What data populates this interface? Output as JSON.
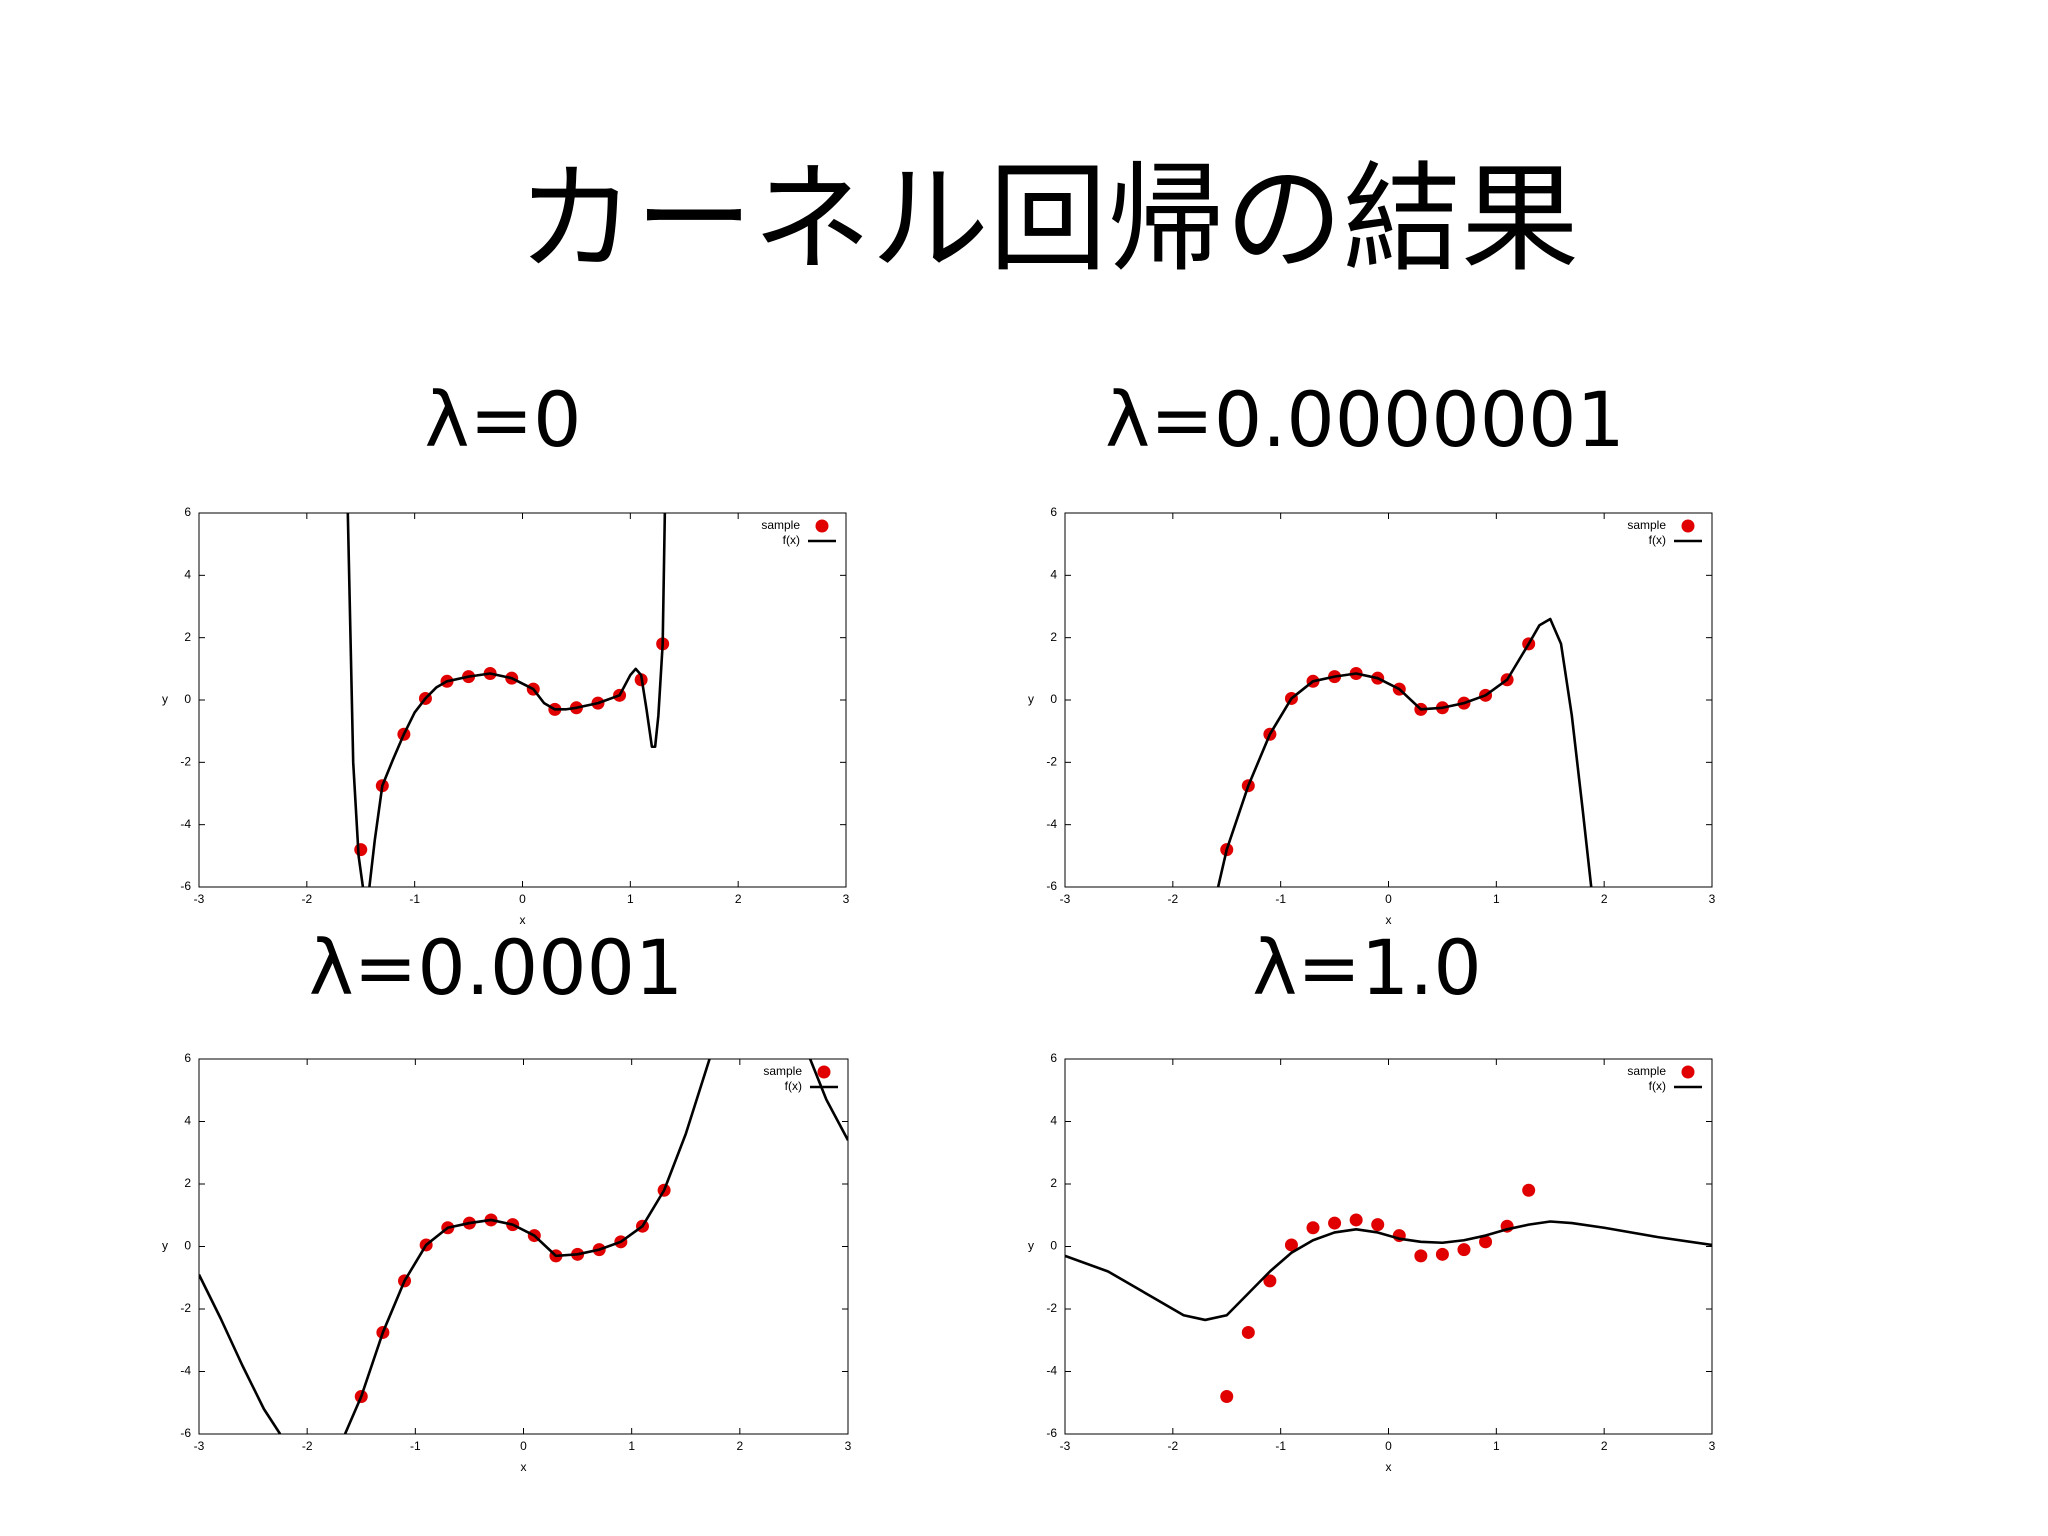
{
  "title": "カーネル回帰の結果",
  "chart_data": [
    {
      "type": "line",
      "title": "λ=0",
      "xlabel": "x",
      "ylabel": "y",
      "xlim": [
        -3,
        3
      ],
      "ylim": [
        -6,
        6
      ],
      "xticks": [
        -3,
        -2,
        -1,
        0,
        1,
        2,
        3
      ],
      "yticks": [
        -6,
        -4,
        -2,
        0,
        2,
        4,
        6
      ],
      "legend": "upper right",
      "series": [
        {
          "name": "sample",
          "mode": "markers",
          "color": "#e00000",
          "x": [
            -1.5,
            -1.3,
            -1.1,
            -0.9,
            -0.7,
            -0.5,
            -0.3,
            -0.1,
            0.1,
            0.3,
            0.5,
            0.7,
            0.9,
            1.1,
            1.3
          ],
          "y": [
            -4.8,
            -2.75,
            -1.1,
            0.05,
            0.6,
            0.75,
            0.85,
            0.7,
            0.35,
            -0.3,
            -0.25,
            -0.1,
            0.15,
            0.65,
            1.8
          ]
        },
        {
          "name": "f(x)",
          "mode": "line",
          "color": "#000000",
          "x": [
            -1.62,
            -1.57,
            -1.52,
            -1.48,
            null,
            -1.42,
            -1.37,
            -1.3,
            -1.2,
            -1.1,
            -1.0,
            -0.9,
            -0.8,
            -0.7,
            -0.5,
            -0.3,
            -0.1,
            0.1,
            0.2,
            0.3,
            0.4,
            0.5,
            0.7,
            0.9,
            1.0,
            1.05,
            1.1,
            1.15,
            1.2,
            1.23,
            1.26,
            1.3,
            1.32
          ],
          "y": [
            6,
            -2,
            -5,
            -6,
            null,
            -6,
            -4.5,
            -2.75,
            -1.9,
            -1.1,
            -0.4,
            0.05,
            0.4,
            0.6,
            0.75,
            0.85,
            0.7,
            0.35,
            -0.1,
            -0.3,
            -0.3,
            -0.25,
            -0.1,
            0.15,
            0.8,
            1.0,
            0.8,
            -0.3,
            -1.5,
            -1.5,
            -0.5,
            1.8,
            6
          ]
        }
      ]
    },
    {
      "type": "line",
      "title": "λ=0.0000001",
      "xlabel": "x",
      "ylabel": "y",
      "xlim": [
        -3,
        3
      ],
      "ylim": [
        -6,
        6
      ],
      "xticks": [
        -3,
        -2,
        -1,
        0,
        1,
        2,
        3
      ],
      "yticks": [
        -6,
        -4,
        -2,
        0,
        2,
        4,
        6
      ],
      "legend": "upper right",
      "series": [
        {
          "name": "sample",
          "mode": "markers",
          "color": "#e00000",
          "x": [
            -1.5,
            -1.3,
            -1.1,
            -0.9,
            -0.7,
            -0.5,
            -0.3,
            -0.1,
            0.1,
            0.3,
            0.5,
            0.7,
            0.9,
            1.1,
            1.3
          ],
          "y": [
            -4.8,
            -2.75,
            -1.1,
            0.05,
            0.6,
            0.75,
            0.85,
            0.7,
            0.35,
            -0.3,
            -0.25,
            -0.1,
            0.15,
            0.65,
            1.8
          ]
        },
        {
          "name": "f(x)",
          "mode": "line",
          "color": "#000000",
          "x": [
            -1.58,
            -1.5,
            -1.3,
            -1.1,
            -0.9,
            -0.7,
            -0.5,
            -0.3,
            -0.1,
            0.1,
            0.3,
            0.5,
            0.7,
            0.9,
            1.1,
            1.3,
            1.4,
            1.5,
            1.6,
            1.7,
            1.8,
            1.88
          ],
          "y": [
            -6,
            -4.8,
            -2.75,
            -1.1,
            0.05,
            0.6,
            0.75,
            0.85,
            0.7,
            0.35,
            -0.3,
            -0.25,
            -0.1,
            0.15,
            0.65,
            1.8,
            2.4,
            2.6,
            1.8,
            -0.5,
            -3.5,
            -6
          ]
        }
      ]
    },
    {
      "type": "line",
      "title": "λ=0.0001",
      "xlabel": "x",
      "ylabel": "y",
      "xlim": [
        -3,
        3
      ],
      "ylim": [
        -6,
        6
      ],
      "xticks": [
        -3,
        -2,
        -1,
        0,
        1,
        2,
        3
      ],
      "yticks": [
        -6,
        -4,
        -2,
        0,
        2,
        4,
        6
      ],
      "legend": "upper right",
      "series": [
        {
          "name": "sample",
          "mode": "markers",
          "color": "#e00000",
          "x": [
            -1.5,
            -1.3,
            -1.1,
            -0.9,
            -0.7,
            -0.5,
            -0.3,
            -0.1,
            0.1,
            0.3,
            0.5,
            0.7,
            0.9,
            1.1,
            1.3
          ],
          "y": [
            -4.8,
            -2.75,
            -1.1,
            0.05,
            0.6,
            0.75,
            0.85,
            0.7,
            0.35,
            -0.3,
            -0.25,
            -0.1,
            0.15,
            0.65,
            1.8
          ]
        },
        {
          "name": "f(x)",
          "mode": "line",
          "color": "#000000",
          "x": [
            -3,
            -2.8,
            -2.6,
            -2.4,
            -2.25,
            null,
            -1.65,
            -1.5,
            -1.3,
            -1.1,
            -0.9,
            -0.7,
            -0.5,
            -0.3,
            -0.1,
            0.1,
            0.3,
            0.5,
            0.7,
            0.9,
            1.1,
            1.3,
            1.5,
            1.72,
            null,
            2.65,
            2.8,
            3
          ],
          "y": [
            -0.9,
            -2.3,
            -3.8,
            -5.2,
            -6,
            null,
            -6,
            -4.8,
            -2.75,
            -1.1,
            0.05,
            0.6,
            0.75,
            0.85,
            0.7,
            0.35,
            -0.3,
            -0.25,
            -0.1,
            0.15,
            0.65,
            1.8,
            3.6,
            6,
            null,
            6,
            4.7,
            3.4
          ]
        }
      ]
    },
    {
      "type": "line",
      "title": "λ=1.0",
      "xlabel": "x",
      "ylabel": "y",
      "xlim": [
        -3,
        3
      ],
      "ylim": [
        -6,
        6
      ],
      "xticks": [
        -3,
        -2,
        -1,
        0,
        1,
        2,
        3
      ],
      "yticks": [
        -6,
        -4,
        -2,
        0,
        2,
        4,
        6
      ],
      "legend": "upper right",
      "series": [
        {
          "name": "sample",
          "mode": "markers",
          "color": "#e00000",
          "x": [
            -1.5,
            -1.3,
            -1.1,
            -0.9,
            -0.7,
            -0.5,
            -0.3,
            -0.1,
            0.1,
            0.3,
            0.5,
            0.7,
            0.9,
            1.1,
            1.3
          ],
          "y": [
            -4.8,
            -2.75,
            -1.1,
            0.05,
            0.6,
            0.75,
            0.85,
            0.7,
            0.35,
            -0.3,
            -0.25,
            -0.1,
            0.15,
            0.65,
            1.8
          ]
        },
        {
          "name": "f(x)",
          "mode": "line",
          "color": "#000000",
          "x": [
            -3,
            -2.6,
            -2.2,
            -1.9,
            -1.7,
            -1.5,
            -1.3,
            -1.1,
            -0.9,
            -0.7,
            -0.5,
            -0.3,
            -0.1,
            0.1,
            0.3,
            0.5,
            0.7,
            0.9,
            1.1,
            1.3,
            1.5,
            1.7,
            2.0,
            2.5,
            3
          ],
          "y": [
            -0.3,
            -0.8,
            -1.6,
            -2.2,
            -2.35,
            -2.2,
            -1.5,
            -0.8,
            -0.2,
            0.2,
            0.45,
            0.55,
            0.45,
            0.25,
            0.15,
            0.12,
            0.2,
            0.35,
            0.55,
            0.7,
            0.8,
            0.75,
            0.6,
            0.3,
            0.05
          ]
        }
      ]
    }
  ]
}
